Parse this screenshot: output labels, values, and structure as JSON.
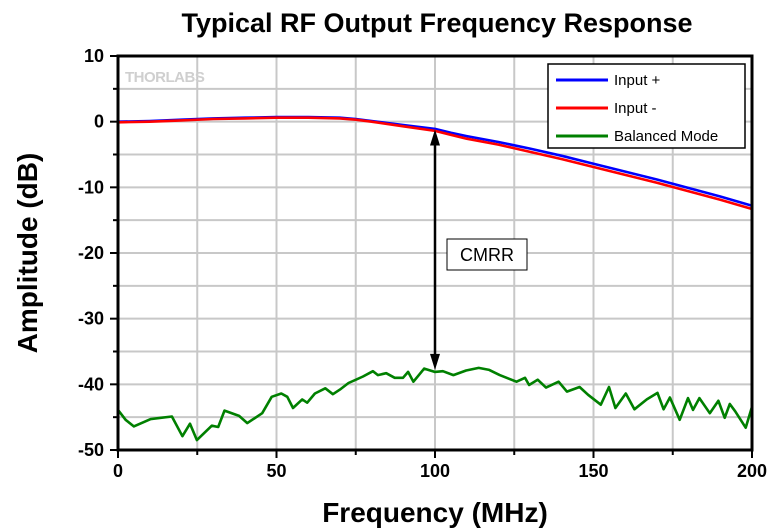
{
  "chart_data": {
    "type": "line",
    "title": "Typical RF Output Frequency Response",
    "xlabel": "Frequency (MHz)",
    "ylabel": "Amplitude (dB)",
    "xlim": [
      0,
      200
    ],
    "ylim": [
      -50,
      10
    ],
    "xticks": [
      0,
      50,
      100,
      150,
      200
    ],
    "yticks": [
      10,
      0,
      -10,
      -20,
      -30,
      -40,
      -50
    ],
    "grid": true,
    "legend_position": "top-right",
    "logo": "THORLABS",
    "annotation": {
      "text": "CMRR",
      "x": 100,
      "from": -1.2,
      "to": -37.8
    },
    "series": [
      {
        "name": "Input +",
        "color": "#0000ff",
        "x": [
          0,
          10,
          20,
          30,
          40,
          50,
          60,
          70,
          75,
          80,
          90,
          100,
          105,
          110,
          120,
          130,
          140,
          150,
          160,
          170,
          180,
          190,
          200
        ],
        "y": [
          0,
          0.1,
          0.3,
          0.5,
          0.6,
          0.7,
          0.7,
          0.6,
          0.4,
          0.1,
          -0.5,
          -1.1,
          -1.7,
          -2.2,
          -3.1,
          -4.1,
          -5.2,
          -6.4,
          -7.6,
          -8.8,
          -10.1,
          -11.4,
          -12.8
        ]
      },
      {
        "name": "Input -",
        "color": "#ff0000",
        "x": [
          0,
          10,
          20,
          30,
          40,
          50,
          60,
          70,
          75,
          80,
          90,
          100,
          105,
          110,
          120,
          130,
          140,
          150,
          160,
          170,
          180,
          190,
          200
        ],
        "y": [
          -0.1,
          0,
          0.2,
          0.4,
          0.5,
          0.6,
          0.6,
          0.5,
          0.3,
          0,
          -0.7,
          -1.4,
          -2,
          -2.6,
          -3.5,
          -4.6,
          -5.7,
          -6.9,
          -8.1,
          -9.3,
          -10.6,
          -11.9,
          -13.3
        ]
      },
      {
        "name": "Balanced Mode",
        "color": "#008000",
        "x": [
          0,
          2.4,
          5,
          10.3,
          17,
          20.3,
          22.7,
          24.9,
          29.6,
          31.6,
          33.6,
          38.2,
          40.8,
          45.5,
          48.5,
          51.5,
          53.4,
          55.2,
          58.1,
          59.7,
          62.1,
          65.4,
          67.8,
          70,
          72.7,
          77.3,
          80.4,
          82,
          84.6,
          87.3,
          89.9,
          91.5,
          93.2,
          96.6,
          99.9,
          102.5,
          105.8,
          109.8,
          113.8,
          117.1,
          120.4,
          125.7,
          128.4,
          129.7,
          132.4,
          135,
          139,
          141.6,
          145.6,
          148.3,
          152.3,
          154.9,
          156.9,
          160.2,
          162.9,
          166.8,
          170.2,
          172.1,
          174.1,
          177.2,
          179.8,
          181.4,
          183.4,
          186.7,
          189.4,
          191.4,
          193,
          194.7,
          198,
          200
        ],
        "y": [
          -43.9,
          -45.4,
          -46.4,
          -45.3,
          -44.9,
          -47.9,
          -46,
          -48.5,
          -46.3,
          -46.5,
          -44,
          -44.8,
          -45.9,
          -44.4,
          -41.9,
          -41.4,
          -41.9,
          -43.6,
          -42.3,
          -42.8,
          -41.4,
          -40.6,
          -41.5,
          -40.8,
          -39.8,
          -38.8,
          -38,
          -38.6,
          -38.3,
          -39,
          -39,
          -38.1,
          -39.6,
          -37.6,
          -38.1,
          -38,
          -38.6,
          -37.9,
          -37.5,
          -37.8,
          -38.6,
          -39.6,
          -39,
          -40.1,
          -39.3,
          -40.5,
          -39.6,
          -41.1,
          -40.4,
          -41.6,
          -43.1,
          -40.4,
          -43.6,
          -41.4,
          -43.8,
          -42.3,
          -41.3,
          -43.8,
          -42,
          -45.4,
          -42.1,
          -43.9,
          -42.1,
          -44.4,
          -42.5,
          -45.1,
          -43,
          -44.1,
          -46.6,
          -43.4
        ]
      }
    ]
  }
}
